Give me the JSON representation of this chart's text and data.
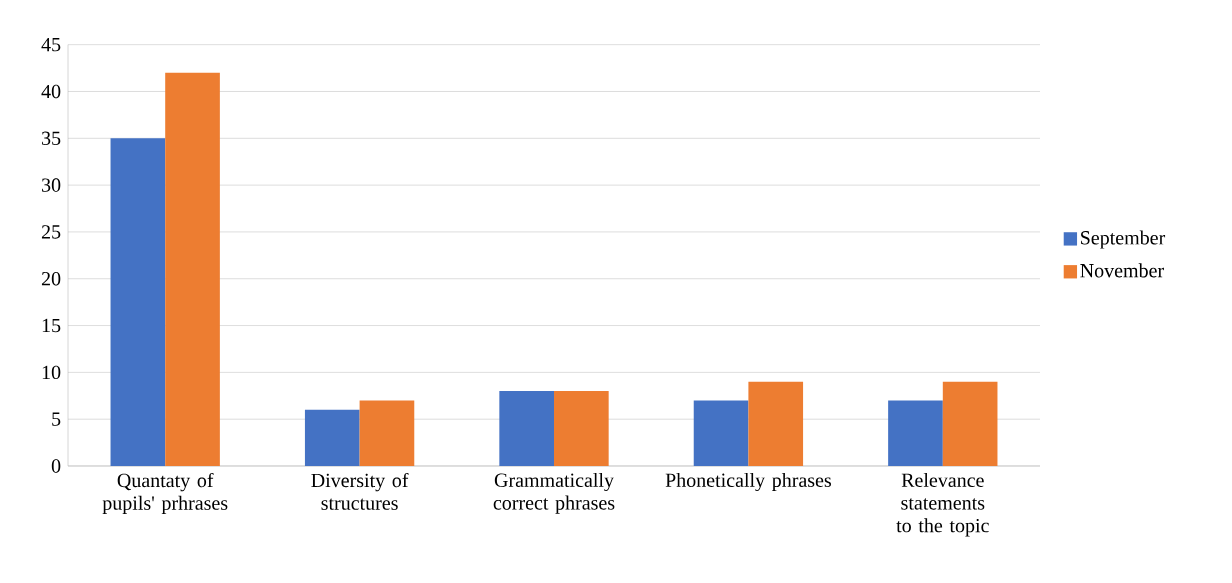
{
  "chart_data": {
    "type": "bar",
    "categories": [
      "Quantaty of pupils' prhrases",
      "Diversity of structures",
      "Grammatically correct phrases",
      "Phonetically phrases",
      "Relevance statements to the topic"
    ],
    "series": [
      {
        "name": "September",
        "color": "#4472c4",
        "values": [
          35,
          6,
          8,
          7,
          7
        ]
      },
      {
        "name": "November",
        "color": "#ed7d31",
        "values": [
          42,
          7,
          8,
          9,
          9
        ]
      }
    ],
    "ylim": [
      0,
      45
    ],
    "yticks": [
      0,
      5,
      10,
      15,
      20,
      25,
      30,
      35,
      40,
      45
    ],
    "grid": "y",
    "legend": "right"
  }
}
